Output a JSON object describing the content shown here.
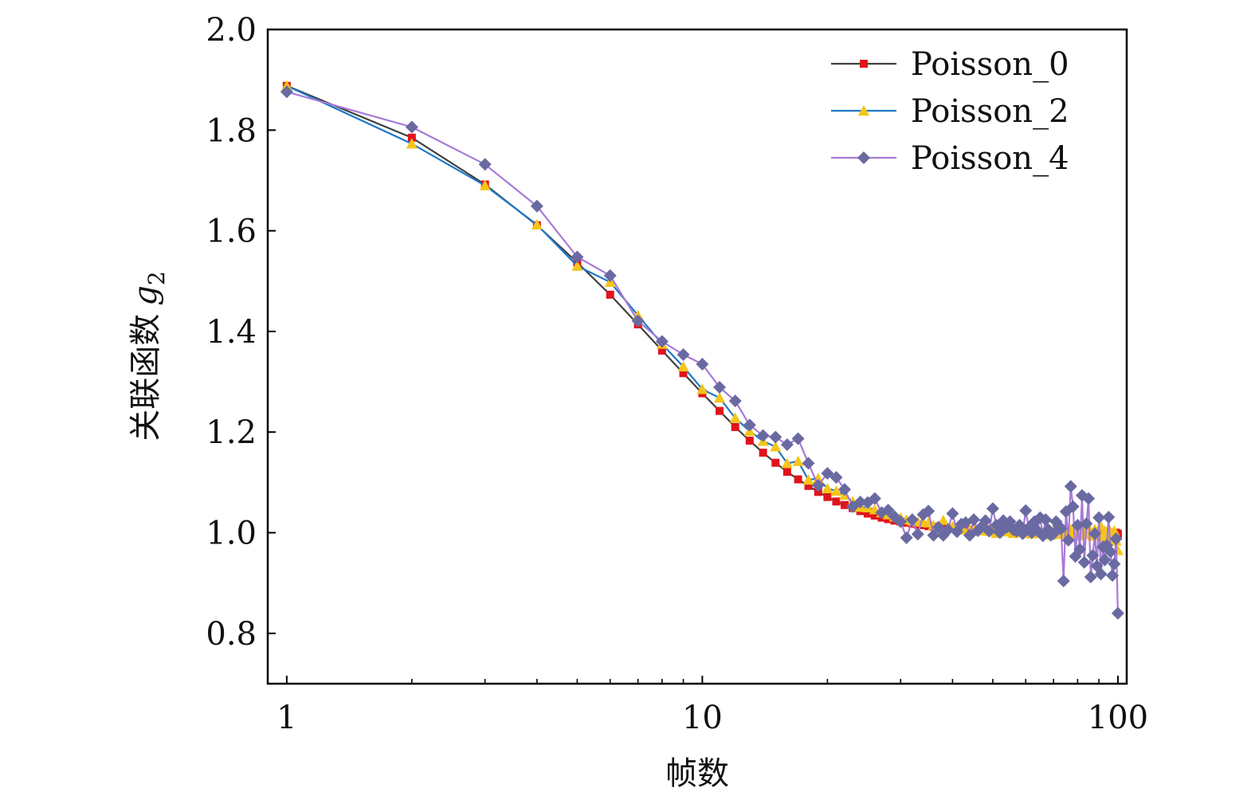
{
  "chart_data": {
    "type": "line",
    "title": "",
    "xlabel": "帧数",
    "ylabel": "关联函数",
    "ylabel_symbol": "g",
    "ylabel_subscript": "2",
    "xscale": "log",
    "xlim": [
      0.9,
      105
    ],
    "ylim": [
      0.7,
      2.0
    ],
    "xticks": [
      1,
      10,
      100
    ],
    "xtick_labels": [
      "1",
      "10",
      "100"
    ],
    "yticks": [
      0.8,
      1.0,
      1.2,
      1.4,
      1.6,
      1.8,
      2.0
    ],
    "ytick_labels": [
      "0.8",
      "1.0",
      "1.2",
      "1.4",
      "1.6",
      "1.8",
      "2.0"
    ],
    "grid": false,
    "legend_position": "top-right",
    "series": [
      {
        "name": "Poisson_0",
        "line_color": "#404040",
        "marker_color": "#e0141b",
        "marker": "square",
        "x": [
          1,
          2,
          3,
          4,
          5,
          6,
          7,
          8,
          9,
          10,
          11,
          12,
          13,
          14,
          15,
          16,
          17,
          18,
          19,
          20,
          21,
          22,
          23,
          24,
          25,
          26,
          27,
          28,
          29,
          30,
          31,
          32,
          33,
          34,
          35,
          36,
          37,
          38,
          39,
          40,
          41,
          42,
          43,
          44,
          45,
          46,
          47,
          48,
          49,
          50,
          51,
          52,
          53,
          54,
          55,
          56,
          57,
          58,
          59,
          60,
          61,
          62,
          63,
          64,
          65,
          66,
          67,
          68,
          69,
          70,
          71,
          72,
          73,
          74,
          75,
          76,
          77,
          78,
          79,
          80,
          81,
          82,
          83,
          84,
          85,
          86,
          87,
          88,
          89,
          90,
          91,
          92,
          93,
          94,
          95,
          96,
          97,
          98,
          99,
          100
        ],
        "y": [
          1.888,
          1.785,
          1.692,
          1.611,
          1.537,
          1.473,
          1.414,
          1.362,
          1.317,
          1.277,
          1.242,
          1.21,
          1.183,
          1.159,
          1.139,
          1.121,
          1.106,
          1.093,
          1.081,
          1.071,
          1.062,
          1.055,
          1.049,
          1.043,
          1.038,
          1.034,
          1.03,
          1.027,
          1.024,
          1.022,
          1.02,
          1.018,
          1.016,
          1.015,
          1.013,
          1.012,
          1.011,
          1.01,
          1.009,
          1.008,
          1.008,
          1.007,
          1.006,
          1.006,
          1.005,
          1.005,
          1.004,
          1.004,
          1.004,
          1.003,
          1.003,
          1.003,
          1.003,
          1.002,
          1.002,
          1.002,
          1.002,
          1.002,
          1.002,
          1.001,
          1.001,
          1.001,
          1.001,
          1.001,
          1.001,
          1.001,
          1.001,
          1.001,
          1.001,
          1.0,
          1.0,
          1.0,
          1.0,
          1.0,
          1.0,
          1.0,
          1.0,
          1.0,
          1.0,
          1.0,
          1.0,
          1.0,
          1.0,
          1.0,
          1.0,
          1.0,
          1.0,
          1.0,
          1.0,
          1.0,
          1.0,
          1.0,
          1.0,
          1.0,
          1.0,
          1.0,
          1.0,
          1.0,
          1.0,
          0.998
        ]
      },
      {
        "name": "Poisson_2",
        "line_color": "#1f77c8",
        "marker_color": "#f5c518",
        "marker": "triangle",
        "x": [
          1,
          2,
          3,
          4,
          5,
          6,
          7,
          8,
          9,
          10,
          11,
          12,
          13,
          14,
          15,
          16,
          17,
          18,
          19,
          20,
          21,
          22,
          23,
          24,
          25,
          26,
          27,
          28,
          29,
          30,
          31,
          32,
          33,
          34,
          35,
          36,
          37,
          38,
          39,
          40,
          41,
          42,
          43,
          44,
          45,
          46,
          47,
          48,
          49,
          50,
          51,
          52,
          53,
          54,
          55,
          56,
          57,
          58,
          59,
          60,
          61,
          62,
          63,
          64,
          65,
          66,
          67,
          68,
          69,
          70,
          71,
          72,
          73,
          74,
          75,
          76,
          77,
          78,
          79,
          80,
          81,
          82,
          83,
          84,
          85,
          86,
          87,
          88,
          89,
          90,
          91,
          92,
          93,
          94,
          95,
          96,
          97,
          98,
          99,
          100
        ],
        "y": [
          1.888,
          1.773,
          1.69,
          1.612,
          1.53,
          1.498,
          1.432,
          1.375,
          1.33,
          1.285,
          1.268,
          1.228,
          1.202,
          1.182,
          1.171,
          1.138,
          1.142,
          1.105,
          1.108,
          1.088,
          1.083,
          1.075,
          1.062,
          1.051,
          1.05,
          1.046,
          1.04,
          1.036,
          1.032,
          1.03,
          1.026,
          1.024,
          1.022,
          1.021,
          1.02,
          1.015,
          1.012,
          1.025,
          1.01,
          1.012,
          1.008,
          1.015,
          1.006,
          1.005,
          1.012,
          1.006,
          1.004,
          1.016,
          1.003,
          1.009,
          0.999,
          1.011,
          1.004,
          1.002,
          1.012,
          0.999,
          1.006,
          1.001,
          1.003,
          1.007,
          1.0,
          0.998,
          1.01,
          1.002,
          1.0,
          0.999,
          1.005,
          1.002,
          0.996,
          1.004,
          1.0,
          1.002,
          0.997,
          1.005,
          0.999,
          1.001,
          1.006,
          0.996,
          1.012,
          1.0,
          0.995,
          1.008,
          1.003,
          0.997,
          1.01,
          1.002,
          0.994,
          1.007,
          1.0,
          0.998,
          1.013,
          0.992,
          1.004,
          0.999,
          1.008,
          0.986,
          0.995,
          1.004,
          0.984,
          0.965
        ]
      },
      {
        "name": "Poisson_4",
        "line_color": "#a77ad6",
        "marker_color": "#6a6aa2",
        "marker": "diamond",
        "x": [
          1,
          2,
          3,
          4,
          5,
          6,
          7,
          8,
          9,
          10,
          11,
          12,
          13,
          14,
          15,
          16,
          17,
          18,
          19,
          20,
          21,
          22,
          23,
          24,
          25,
          26,
          27,
          28,
          29,
          30,
          31,
          32,
          33,
          34,
          35,
          36,
          37,
          38,
          39,
          40,
          41,
          42,
          43,
          44,
          45,
          46,
          47,
          48,
          49,
          50,
          51,
          52,
          53,
          54,
          55,
          56,
          57,
          58,
          59,
          60,
          61,
          62,
          63,
          64,
          65,
          66,
          67,
          68,
          69,
          70,
          71,
          72,
          73,
          74,
          75,
          76,
          77,
          78,
          79,
          80,
          81,
          82,
          83,
          84,
          85,
          86,
          87,
          88,
          89,
          90,
          91,
          92,
          93,
          94,
          95,
          96,
          97,
          98,
          99,
          100
        ],
        "y": [
          1.876,
          1.806,
          1.732,
          1.649,
          1.548,
          1.511,
          1.421,
          1.38,
          1.354,
          1.335,
          1.289,
          1.262,
          1.214,
          1.193,
          1.19,
          1.175,
          1.187,
          1.138,
          1.094,
          1.118,
          1.11,
          1.086,
          1.052,
          1.061,
          1.06,
          1.068,
          1.04,
          1.045,
          1.032,
          1.022,
          0.99,
          1.026,
          0.997,
          1.036,
          1.043,
          0.995,
          1.011,
          0.995,
          1.006,
          1.038,
          1.002,
          1.017,
          1.02,
          0.995,
          1.026,
          1.004,
          1.012,
          1.024,
          1.003,
          1.048,
          1.015,
          1.0,
          1.024,
          1.011,
          1.022,
          1.006,
          1.003,
          1.015,
          0.998,
          1.044,
          1.01,
          1.0,
          1.022,
          1.004,
          1.03,
          0.994,
          1.026,
          1.006,
          0.995,
          0.998,
          1.022,
          1.014,
          1.008,
          0.904,
          1.042,
          0.985,
          1.092,
          1.052,
          0.953,
          1.015,
          0.967,
          1.074,
          0.941,
          1.018,
          1.068,
          0.912,
          0.955,
          0.998,
          0.934,
          1.03,
          0.918,
          0.972,
          0.946,
          0.975,
          1.031,
          0.962,
          0.915,
          0.938,
          0.988,
          0.84
        ]
      }
    ]
  }
}
